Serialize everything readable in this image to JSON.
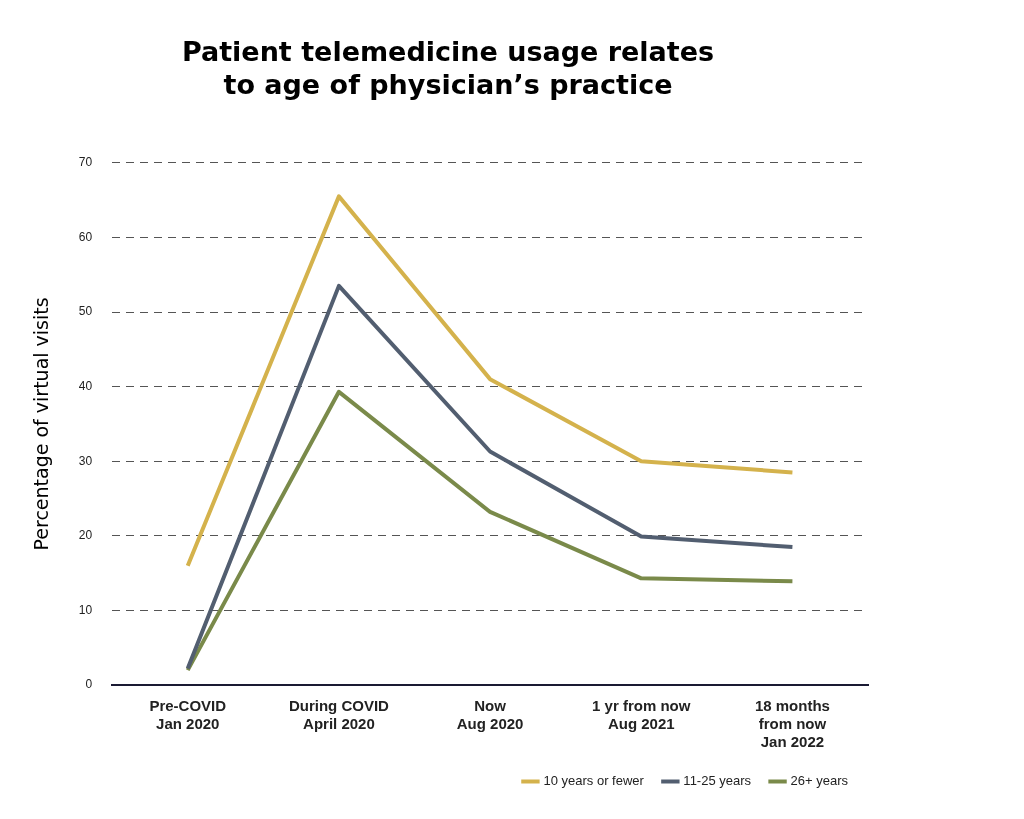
{
  "chart_data": {
    "type": "line",
    "title": "Patient telemedicine usage relates\nto age of physician’s practice",
    "ylabel": "Percentage of virtual visits",
    "categories": [
      "Pre-COVID\nJan 2020",
      "During COVID\nApril 2020",
      "Now\nAug 2020",
      "1 yr from now\nAug 2021",
      "18 months\nfrom now\nJan 2022"
    ],
    "series": [
      {
        "name": "10 years or fewer",
        "color": "#d4b24c",
        "values": [
          16,
          65.5,
          41,
          30,
          28.5
        ]
      },
      {
        "name": "11-25 years",
        "color": "#525e70",
        "values": [
          2.2,
          53.5,
          31.3,
          19.9,
          18.5
        ]
      },
      {
        "name": "26+ years",
        "color": "#7a8a4a",
        "values": [
          2,
          39.3,
          23.2,
          14.3,
          13.9
        ]
      }
    ],
    "ylim": [
      0,
      70
    ],
    "yticks": [
      0,
      10,
      20,
      30,
      40,
      50,
      60,
      70
    ],
    "grid": "y",
    "legend": "bottom right",
    "marker": "none",
    "line_style": "solid"
  }
}
